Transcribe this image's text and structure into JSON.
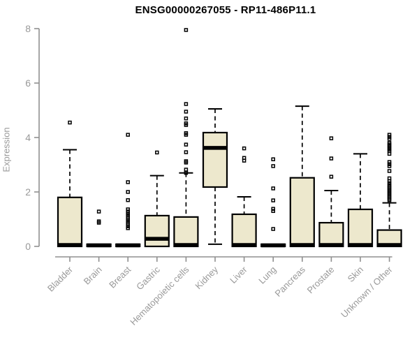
{
  "style": {
    "box_fill": "#ede8cd",
    "box_stroke": "#000000",
    "median_color": "#000000",
    "axis_color": "#8f8f8f",
    "tick_text_color": "#999999",
    "title_color": "#000000",
    "background": "#ffffff"
  },
  "chart_data": {
    "type": "boxplot",
    "title": "ENSG00000267055 - RP11-486P11.1",
    "ylabel": "Expression",
    "xlabel": "",
    "ylim": [
      0,
      8
    ],
    "yticks": [
      0,
      2,
      4,
      6,
      8
    ],
    "grid": false,
    "legend": false,
    "categories": [
      "Bladder",
      "Brain",
      "Breast",
      "Gastric",
      "Hematopoietic cells",
      "Kidney",
      "Liver",
      "Lung",
      "Pancreas",
      "Prostate",
      "Skin",
      "Unknown / Other"
    ],
    "series": [
      {
        "category": "Bladder",
        "whisker_low": 0,
        "q1": 0,
        "median": 0.05,
        "q3": 1.8,
        "whisker_high": 3.55,
        "outliers": [
          4.55
        ]
      },
      {
        "category": "Brain",
        "whisker_low": 0,
        "q1": 0,
        "median": 0.04,
        "q3": 0.08,
        "whisker_high": 0.08,
        "outliers": [
          0.87,
          0.92,
          1.28
        ]
      },
      {
        "category": "Breast",
        "whisker_low": 0,
        "q1": 0,
        "median": 0.04,
        "q3": 0.08,
        "whisker_high": 0.08,
        "outliers": [
          0.67,
          0.74,
          0.82,
          0.9,
          0.97,
          1.05,
          1.13,
          1.2,
          1.28,
          1.36,
          1.7,
          2.0,
          2.36,
          4.1
        ]
      },
      {
        "category": "Gastric",
        "whisker_low": 0,
        "q1": 0,
        "median": 0.28,
        "q3": 1.13,
        "whisker_high": 2.6,
        "outliers": [
          3.45
        ]
      },
      {
        "category": "Hematopoietic cells",
        "whisker_low": 0,
        "q1": 0,
        "median": 0.05,
        "q3": 1.08,
        "whisker_high": 2.7,
        "outliers": [
          2.7,
          2.82,
          3.08,
          3.13,
          3.46,
          3.74,
          4.1,
          4.16,
          4.46,
          4.52,
          4.7,
          4.95,
          5.23,
          7.95
        ]
      },
      {
        "category": "Kidney",
        "whisker_low": 0.08,
        "q1": 2.18,
        "median": 3.62,
        "q3": 4.18,
        "whisker_high": 5.05,
        "outliers": []
      },
      {
        "category": "Liver",
        "whisker_low": 0,
        "q1": 0,
        "median": 0.05,
        "q3": 1.18,
        "whisker_high": 1.82,
        "outliers": [
          3.15,
          3.25,
          3.6
        ]
      },
      {
        "category": "Lung",
        "whisker_low": 0,
        "q1": 0,
        "median": 0.04,
        "q3": 0.08,
        "whisker_high": 0.08,
        "outliers": [
          0.64,
          1.3,
          1.38,
          1.69,
          2.13,
          2.95,
          3.2
        ]
      },
      {
        "category": "Pancreas",
        "whisker_low": 0,
        "q1": 0,
        "median": 0.05,
        "q3": 2.52,
        "whisker_high": 5.15,
        "outliers": []
      },
      {
        "category": "Prostate",
        "whisker_low": 0,
        "q1": 0,
        "median": 0.05,
        "q3": 0.87,
        "whisker_high": 2.05,
        "outliers": [
          2.56,
          3.23,
          3.97
        ]
      },
      {
        "category": "Skin",
        "whisker_low": 0,
        "q1": 0,
        "median": 0.05,
        "q3": 1.36,
        "whisker_high": 3.4,
        "outliers": []
      },
      {
        "category": "Unknown / Other",
        "whisker_low": 0,
        "q1": 0,
        "median": 0.05,
        "q3": 0.6,
        "whisker_high": 1.6,
        "outliers": [
          1.7,
          1.75,
          1.8,
          1.85,
          1.9,
          1.95,
          2.0,
          2.05,
          2.1,
          2.15,
          2.2,
          2.25,
          2.32,
          2.4,
          2.5,
          2.77,
          2.95,
          3.02,
          3.1,
          3.4,
          3.5,
          3.56,
          3.62,
          3.68,
          3.74,
          3.8,
          3.95,
          4.02,
          4.1
        ]
      }
    ]
  }
}
